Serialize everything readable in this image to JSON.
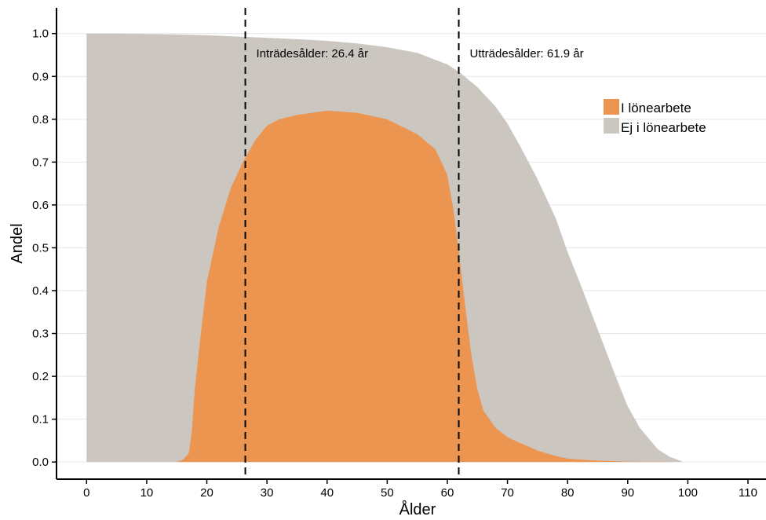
{
  "chart_data": {
    "type": "area",
    "xlabel": "Ålder",
    "ylabel": "Andel",
    "xlim": [
      -5,
      113
    ],
    "ylim": [
      -0.04,
      1.06
    ],
    "xticks": [
      0,
      10,
      20,
      30,
      40,
      50,
      60,
      70,
      80,
      90,
      100,
      110
    ],
    "yticks": [
      0.0,
      0.1,
      0.2,
      0.3,
      0.4,
      0.5,
      0.6,
      0.7,
      0.8,
      0.9,
      1.0
    ],
    "ytick_labels": [
      "0.0",
      "0.1",
      "0.2",
      "0.3",
      "0.4",
      "0.5",
      "0.6",
      "0.7",
      "0.8",
      "0.9",
      "1.0"
    ],
    "grid": "horizontal",
    "legend_position": "top-right",
    "series": [
      {
        "name": "Ej i lönearbete",
        "color": "#ccc6c1",
        "x": [
          0,
          5,
          10,
          15,
          20,
          25,
          30,
          35,
          40,
          45,
          50,
          55,
          60,
          62,
          65,
          68,
          70,
          72,
          75,
          78,
          80,
          82,
          85,
          88,
          90,
          92,
          95,
          97,
          99
        ],
        "values": [
          1.0,
          1.0,
          0.999,
          0.998,
          0.996,
          0.993,
          0.99,
          0.987,
          0.983,
          0.977,
          0.968,
          0.955,
          0.928,
          0.91,
          0.875,
          0.83,
          0.79,
          0.74,
          0.66,
          0.57,
          0.49,
          0.42,
          0.31,
          0.2,
          0.13,
          0.08,
          0.03,
          0.012,
          0.002
        ]
      },
      {
        "name": "I lönearbete",
        "color": "#eb9550",
        "x": [
          15,
          16,
          17,
          17.5,
          18,
          19,
          20,
          22,
          24,
          26,
          28,
          30,
          32,
          35,
          40,
          45,
          50,
          55,
          58,
          60,
          61,
          62,
          63,
          64,
          65,
          66,
          68,
          70,
          72,
          75,
          78,
          80,
          85,
          90,
          95,
          98
        ],
        "values": [
          0.0,
          0.005,
          0.02,
          0.07,
          0.17,
          0.3,
          0.42,
          0.55,
          0.64,
          0.7,
          0.75,
          0.785,
          0.8,
          0.81,
          0.82,
          0.815,
          0.8,
          0.765,
          0.73,
          0.67,
          0.59,
          0.48,
          0.36,
          0.25,
          0.17,
          0.12,
          0.08,
          0.058,
          0.045,
          0.027,
          0.014,
          0.008,
          0.003,
          0.001,
          0.0005,
          0.0
        ]
      }
    ],
    "reference_lines": [
      {
        "x": 26.4,
        "label": "Inträdesålder:  26.4  år"
      },
      {
        "x": 61.9,
        "label": "Utträdesålder:  61.9  år"
      }
    ]
  }
}
